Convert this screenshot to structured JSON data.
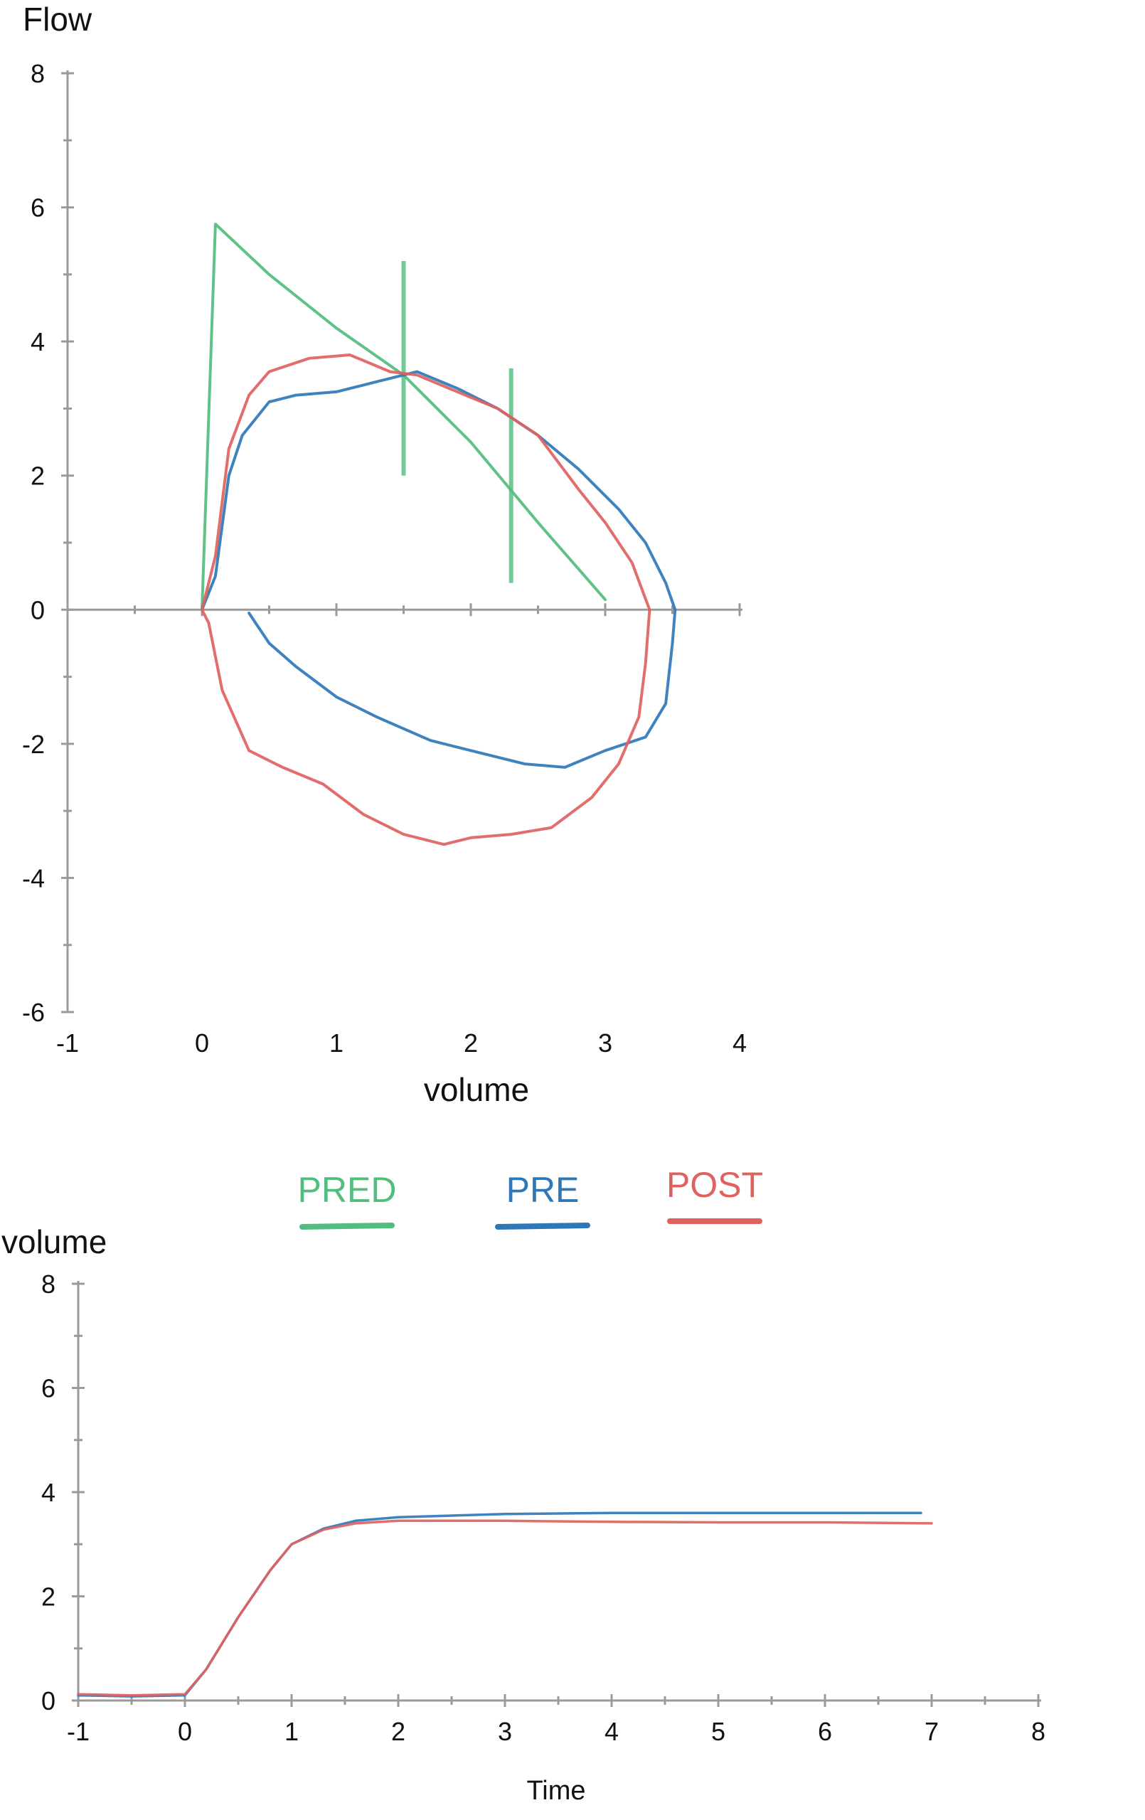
{
  "colors": {
    "axis": "#9a9a9a",
    "text": "#111111",
    "pred": "#52bd7e",
    "pre": "#2f78b8",
    "post": "#e0625f"
  },
  "legend": [
    {
      "label": "PRED",
      "color_key": "pred"
    },
    {
      "label": "PRE",
      "color_key": "pre"
    },
    {
      "label": "POST",
      "color_key": "post"
    }
  ],
  "chart_data": [
    {
      "type": "line",
      "ylabel": "Flow",
      "xlabel": "volume",
      "xlim": [
        -1,
        4
      ],
      "ylim": [
        -6,
        8
      ],
      "xticks": [
        -1,
        0,
        1,
        2,
        3,
        4
      ],
      "yticks": [
        8,
        6,
        4,
        2,
        0,
        -2,
        -4,
        -6
      ],
      "grid": false,
      "series": [
        {
          "name": "PRED",
          "color_key": "pred",
          "points": [
            [
              0,
              0
            ],
            [
              0.1,
              5.75
            ],
            [
              0.5,
              5.0
            ],
            [
              1.0,
              4.2
            ],
            [
              1.5,
              3.5
            ],
            [
              2.0,
              2.5
            ],
            [
              2.5,
              1.3
            ],
            [
              3.0,
              0.15
            ]
          ],
          "markers": [
            [
              1.5,
              3.6
            ],
            [
              2.3,
              2.0
            ]
          ]
        },
        {
          "name": "PRE",
          "color_key": "pre",
          "points": [
            [
              0,
              0
            ],
            [
              0.1,
              0.5
            ],
            [
              0.2,
              2.0
            ],
            [
              0.3,
              2.6
            ],
            [
              0.5,
              3.1
            ],
            [
              0.7,
              3.2
            ],
            [
              1.0,
              3.25
            ],
            [
              1.3,
              3.4
            ],
            [
              1.6,
              3.55
            ],
            [
              1.9,
              3.3
            ],
            [
              2.2,
              3.0
            ],
            [
              2.5,
              2.6
            ],
            [
              2.8,
              2.1
            ],
            [
              3.1,
              1.5
            ],
            [
              3.3,
              1.0
            ],
            [
              3.45,
              0.4
            ],
            [
              3.52,
              0.0
            ],
            [
              3.5,
              -0.5
            ],
            [
              3.45,
              -1.4
            ],
            [
              3.3,
              -1.9
            ],
            [
              3.0,
              -2.1
            ],
            [
              2.7,
              -2.35
            ],
            [
              2.4,
              -2.3
            ],
            [
              2.0,
              -2.1
            ],
            [
              1.7,
              -1.95
            ],
            [
              1.3,
              -1.6
            ],
            [
              1.0,
              -1.3
            ],
            [
              0.7,
              -0.85
            ],
            [
              0.5,
              -0.5
            ],
            [
              0.35,
              -0.05
            ]
          ]
        },
        {
          "name": "POST",
          "color_key": "post",
          "points": [
            [
              0,
              0
            ],
            [
              0.1,
              0.8
            ],
            [
              0.2,
              2.4
            ],
            [
              0.35,
              3.2
            ],
            [
              0.5,
              3.55
            ],
            [
              0.8,
              3.75
            ],
            [
              1.1,
              3.8
            ],
            [
              1.4,
              3.55
            ],
            [
              1.6,
              3.5
            ],
            [
              1.9,
              3.25
            ],
            [
              2.2,
              3.0
            ],
            [
              2.5,
              2.6
            ],
            [
              2.8,
              1.8
            ],
            [
              3.0,
              1.3
            ],
            [
              3.2,
              0.7
            ],
            [
              3.33,
              0.0
            ],
            [
              3.3,
              -0.8
            ],
            [
              3.25,
              -1.6
            ],
            [
              3.1,
              -2.3
            ],
            [
              2.9,
              -2.8
            ],
            [
              2.6,
              -3.25
            ],
            [
              2.3,
              -3.35
            ],
            [
              2.0,
              -3.4
            ],
            [
              1.8,
              -3.5
            ],
            [
              1.5,
              -3.35
            ],
            [
              1.2,
              -3.05
            ],
            [
              0.9,
              -2.6
            ],
            [
              0.6,
              -2.35
            ],
            [
              0.35,
              -2.1
            ],
            [
              0.15,
              -1.2
            ],
            [
              0.05,
              -0.2
            ],
            [
              0,
              0
            ]
          ]
        }
      ]
    },
    {
      "type": "line",
      "ylabel": "volume",
      "xlabel": "Time",
      "xlim": [
        -1,
        8
      ],
      "ylim": [
        0,
        8
      ],
      "xticks": [
        -1,
        0,
        1,
        2,
        3,
        4,
        5,
        6,
        7,
        8
      ],
      "yticks": [
        8,
        6,
        4,
        2,
        0
      ],
      "grid": false,
      "series": [
        {
          "name": "PRE",
          "color_key": "pre",
          "points": [
            [
              -1,
              0.1
            ],
            [
              -0.5,
              0.08
            ],
            [
              0,
              0.1
            ],
            [
              0.2,
              0.6
            ],
            [
              0.5,
              1.6
            ],
            [
              0.8,
              2.5
            ],
            [
              1.0,
              3.0
            ],
            [
              1.3,
              3.3
            ],
            [
              1.6,
              3.45
            ],
            [
              2.0,
              3.52
            ],
            [
              3.0,
              3.58
            ],
            [
              4.0,
              3.6
            ],
            [
              5.0,
              3.6
            ],
            [
              6.0,
              3.6
            ],
            [
              6.9,
              3.6
            ]
          ]
        },
        {
          "name": "POST",
          "color_key": "post",
          "points": [
            [
              -1,
              0.12
            ],
            [
              -0.5,
              0.1
            ],
            [
              0,
              0.12
            ],
            [
              0.2,
              0.6
            ],
            [
              0.5,
              1.6
            ],
            [
              0.8,
              2.5
            ],
            [
              1.0,
              3.0
            ],
            [
              1.3,
              3.28
            ],
            [
              1.6,
              3.4
            ],
            [
              2.0,
              3.45
            ],
            [
              3.0,
              3.45
            ],
            [
              4.0,
              3.43
            ],
            [
              5.0,
              3.42
            ],
            [
              6.0,
              3.42
            ],
            [
              7.0,
              3.4
            ]
          ]
        }
      ]
    }
  ]
}
